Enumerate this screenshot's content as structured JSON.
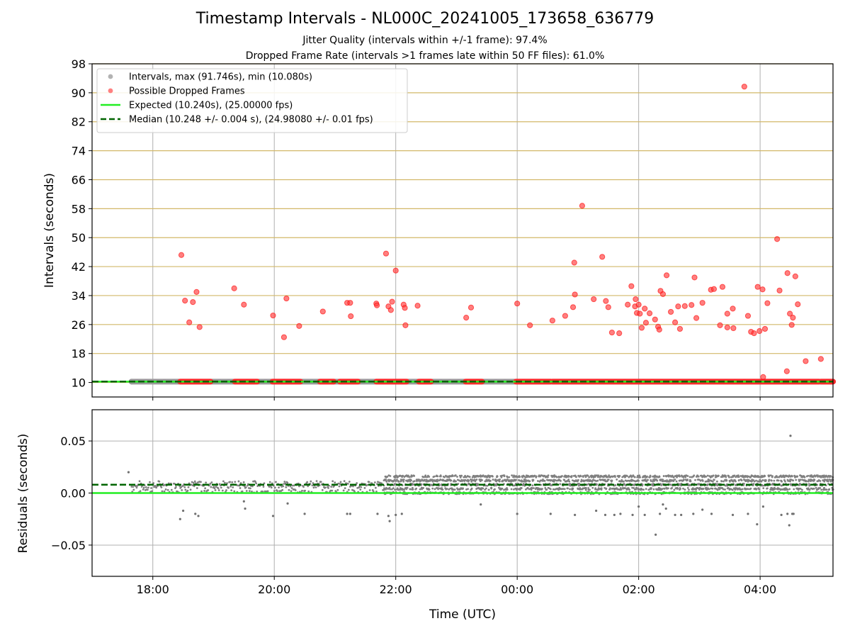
{
  "chart_data": [
    {
      "type": "scatter",
      "title": "Timestamp Intervals - NL000C_20241005_173658_636779",
      "subtitle_lines": [
        "Jitter Quality (intervals within +/-1 frame): 97.4%",
        "Dropped Frame Rate (intervals >1 frames late within 50 FF files): 61.0%"
      ],
      "xlabel": "",
      "ylabel": "Intervals (seconds)",
      "x_axis": "time (hours UTC, day 2024-10-05 17:00 onward; values past 24 are next day)",
      "xlim": [
        17.0,
        29.2
      ],
      "ylim": [
        6,
        98
      ],
      "xticks": [
        18,
        20,
        22,
        24,
        26,
        28
      ],
      "xtick_labels": [
        "18:00",
        "20:00",
        "22:00",
        "00:00",
        "02:00",
        "04:00"
      ],
      "yticks": [
        10,
        18,
        26,
        34,
        42,
        50,
        58,
        66,
        74,
        82,
        90,
        98
      ],
      "ytick_labels": [
        "10",
        "18",
        "26",
        "34",
        "42",
        "50",
        "58",
        "66",
        "74",
        "82",
        "90",
        "98"
      ],
      "grid": "on",
      "legend_placement": "top-left",
      "legend": [
        {
          "label": "Intervals, max (91.746s), min (10.080s)",
          "color": "#999999",
          "kind": "marker"
        },
        {
          "label": "Possible Dropped Frames",
          "color": "#ff5555",
          "kind": "marker"
        },
        {
          "label": "Expected (10.240s), (25.00000 fps)",
          "color": "#22ee22",
          "kind": "line"
        },
        {
          "label": "Median (10.248 +/- 0.004 s), (24.98080 +/- 0.01 fps)",
          "color": "#006400",
          "kind": "dashed"
        }
      ],
      "expected_value": 10.24,
      "median_value": 10.248,
      "interval_band": {
        "x_range": [
          17.65,
          29.2
        ],
        "value": 10.24
      },
      "dropped_baseline_segments": [
        [
          18.45,
          18.95
        ],
        [
          19.35,
          19.72
        ],
        [
          19.97,
          20.43
        ],
        [
          20.75,
          20.98
        ],
        [
          21.08,
          21.38
        ],
        [
          21.68,
          22.18
        ],
        [
          22.38,
          22.58
        ],
        [
          23.15,
          23.42
        ],
        [
          23.98,
          24.55
        ],
        [
          24.58,
          28.97
        ],
        [
          29.0,
          29.2
        ]
      ],
      "dropped_points": [
        [
          18.47,
          45.2
        ],
        [
          18.53,
          32.6
        ],
        [
          18.6,
          26.6
        ],
        [
          18.66,
          32.2
        ],
        [
          18.72,
          35.0
        ],
        [
          18.77,
          25.3
        ],
        [
          19.34,
          36.0
        ],
        [
          19.5,
          31.5
        ],
        [
          19.98,
          28.5
        ],
        [
          20.16,
          22.5
        ],
        [
          20.2,
          33.2
        ],
        [
          20.41,
          25.6
        ],
        [
          20.8,
          29.6
        ],
        [
          21.2,
          32.0
        ],
        [
          21.25,
          32.0
        ],
        [
          21.26,
          28.3
        ],
        [
          21.68,
          31.8
        ],
        [
          21.69,
          31.3
        ],
        [
          21.84,
          45.6
        ],
        [
          21.88,
          31.0
        ],
        [
          21.92,
          30.0
        ],
        [
          21.94,
          32.3
        ],
        [
          22.0,
          40.9
        ],
        [
          22.13,
          31.5
        ],
        [
          22.15,
          30.6
        ],
        [
          22.16,
          25.8
        ],
        [
          22.36,
          31.2
        ],
        [
          23.16,
          27.9
        ],
        [
          23.24,
          30.7
        ],
        [
          24.0,
          31.8
        ],
        [
          24.21,
          25.8
        ],
        [
          24.58,
          27.1
        ],
        [
          24.79,
          28.4
        ],
        [
          24.92,
          30.8
        ],
        [
          24.94,
          43.1
        ],
        [
          24.95,
          34.3
        ],
        [
          25.07,
          58.8
        ],
        [
          25.26,
          33.0
        ],
        [
          25.4,
          44.7
        ],
        [
          25.46,
          32.5
        ],
        [
          25.5,
          30.8
        ],
        [
          25.56,
          23.8
        ],
        [
          25.68,
          23.6
        ],
        [
          25.82,
          31.5
        ],
        [
          25.88,
          36.6
        ],
        [
          25.94,
          31.0
        ],
        [
          25.95,
          33.0
        ],
        [
          25.97,
          29.2
        ],
        [
          26.0,
          31.5
        ],
        [
          26.02,
          29.0
        ],
        [
          26.05,
          25.1
        ],
        [
          26.1,
          30.4
        ],
        [
          26.12,
          26.5
        ],
        [
          26.18,
          29.1
        ],
        [
          26.27,
          27.4
        ],
        [
          26.32,
          25.4
        ],
        [
          26.34,
          24.6
        ],
        [
          26.36,
          35.3
        ],
        [
          26.4,
          34.4
        ],
        [
          26.46,
          39.6
        ],
        [
          26.53,
          29.5
        ],
        [
          26.6,
          26.6
        ],
        [
          26.65,
          31.0
        ],
        [
          26.68,
          24.8
        ],
        [
          26.76,
          31.1
        ],
        [
          26.87,
          31.4
        ],
        [
          26.92,
          39.0
        ],
        [
          26.95,
          27.8
        ],
        [
          27.05,
          32.0
        ],
        [
          27.19,
          35.6
        ],
        [
          27.24,
          35.8
        ],
        [
          27.34,
          25.8
        ],
        [
          27.38,
          36.4
        ],
        [
          27.46,
          25.2
        ],
        [
          27.46,
          29.0
        ],
        [
          27.55,
          30.4
        ],
        [
          27.56,
          25.0
        ],
        [
          27.74,
          91.7
        ],
        [
          27.8,
          28.4
        ],
        [
          27.85,
          24.0
        ],
        [
          27.9,
          23.6
        ],
        [
          27.96,
          36.4
        ],
        [
          27.99,
          24.2
        ],
        [
          28.04,
          35.7
        ],
        [
          28.05,
          11.5
        ],
        [
          28.08,
          24.8
        ],
        [
          28.12,
          31.9
        ],
        [
          28.28,
          49.6
        ],
        [
          28.32,
          35.4
        ],
        [
          28.44,
          13.1
        ],
        [
          28.45,
          40.2
        ],
        [
          28.49,
          29.0
        ],
        [
          28.52,
          25.9
        ],
        [
          28.54,
          27.9
        ],
        [
          28.58,
          39.3
        ],
        [
          28.62,
          31.6
        ],
        [
          28.75,
          15.9
        ],
        [
          29.0,
          16.5
        ]
      ]
    },
    {
      "type": "scatter",
      "xlabel": "Time (UTC)",
      "ylabel": "Residuals (seconds)",
      "xlim": [
        17.0,
        29.2
      ],
      "ylim": [
        -0.08,
        0.08
      ],
      "yticks": [
        0.05,
        0.0,
        -0.05
      ],
      "ytick_labels": [
        "0.05",
        "0.00",
        "−0.05"
      ],
      "xticks": [
        18,
        20,
        22,
        24,
        26,
        28
      ],
      "xtick_labels": [
        "18:00",
        "20:00",
        "22:00",
        "00:00",
        "02:00",
        "04:00"
      ],
      "grid": "on",
      "expected_residual": 0.0,
      "median_residual": 0.008,
      "residual_band_sparse": {
        "x_range": [
          17.65,
          21.8
        ],
        "values": [
          0.002,
          0.006,
          0.008,
          0.01
        ]
      },
      "residual_band_dense": {
        "x_range": [
          21.8,
          29.2
        ],
        "values": [
          0.0,
          0.004,
          0.008,
          0.012,
          0.016
        ]
      },
      "residual_outliers": [
        [
          17.6,
          0.02
        ],
        [
          18.45,
          -0.025
        ],
        [
          18.5,
          -0.017
        ],
        [
          18.7,
          -0.02
        ],
        [
          18.75,
          -0.022
        ],
        [
          19.5,
          -0.008
        ],
        [
          19.52,
          -0.015
        ],
        [
          19.98,
          -0.022
        ],
        [
          20.22,
          -0.01
        ],
        [
          20.5,
          -0.02
        ],
        [
          21.2,
          -0.02
        ],
        [
          21.25,
          -0.02
        ],
        [
          21.7,
          -0.02
        ],
        [
          21.88,
          -0.022
        ],
        [
          21.9,
          -0.027
        ],
        [
          22.0,
          -0.021
        ],
        [
          22.1,
          -0.02
        ],
        [
          23.4,
          -0.011
        ],
        [
          24.0,
          -0.02
        ],
        [
          24.55,
          -0.02
        ],
        [
          24.95,
          -0.021
        ],
        [
          25.3,
          -0.017
        ],
        [
          25.45,
          -0.021
        ],
        [
          25.6,
          -0.021
        ],
        [
          25.7,
          -0.02
        ],
        [
          25.9,
          -0.021
        ],
        [
          26.0,
          -0.013
        ],
        [
          26.1,
          -0.021
        ],
        [
          26.28,
          -0.04
        ],
        [
          26.35,
          -0.02
        ],
        [
          26.4,
          -0.011
        ],
        [
          26.45,
          -0.015
        ],
        [
          26.6,
          -0.021
        ],
        [
          26.7,
          -0.021
        ],
        [
          26.9,
          -0.02
        ],
        [
          27.05,
          -0.016
        ],
        [
          27.2,
          -0.02
        ],
        [
          27.55,
          -0.021
        ],
        [
          27.8,
          -0.02
        ],
        [
          27.95,
          -0.03
        ],
        [
          28.05,
          -0.013
        ],
        [
          28.35,
          -0.021
        ],
        [
          28.45,
          -0.02
        ],
        [
          28.48,
          -0.031
        ],
        [
          28.5,
          0.055
        ],
        [
          28.53,
          -0.02
        ],
        [
          28.55,
          -0.02
        ]
      ]
    }
  ]
}
